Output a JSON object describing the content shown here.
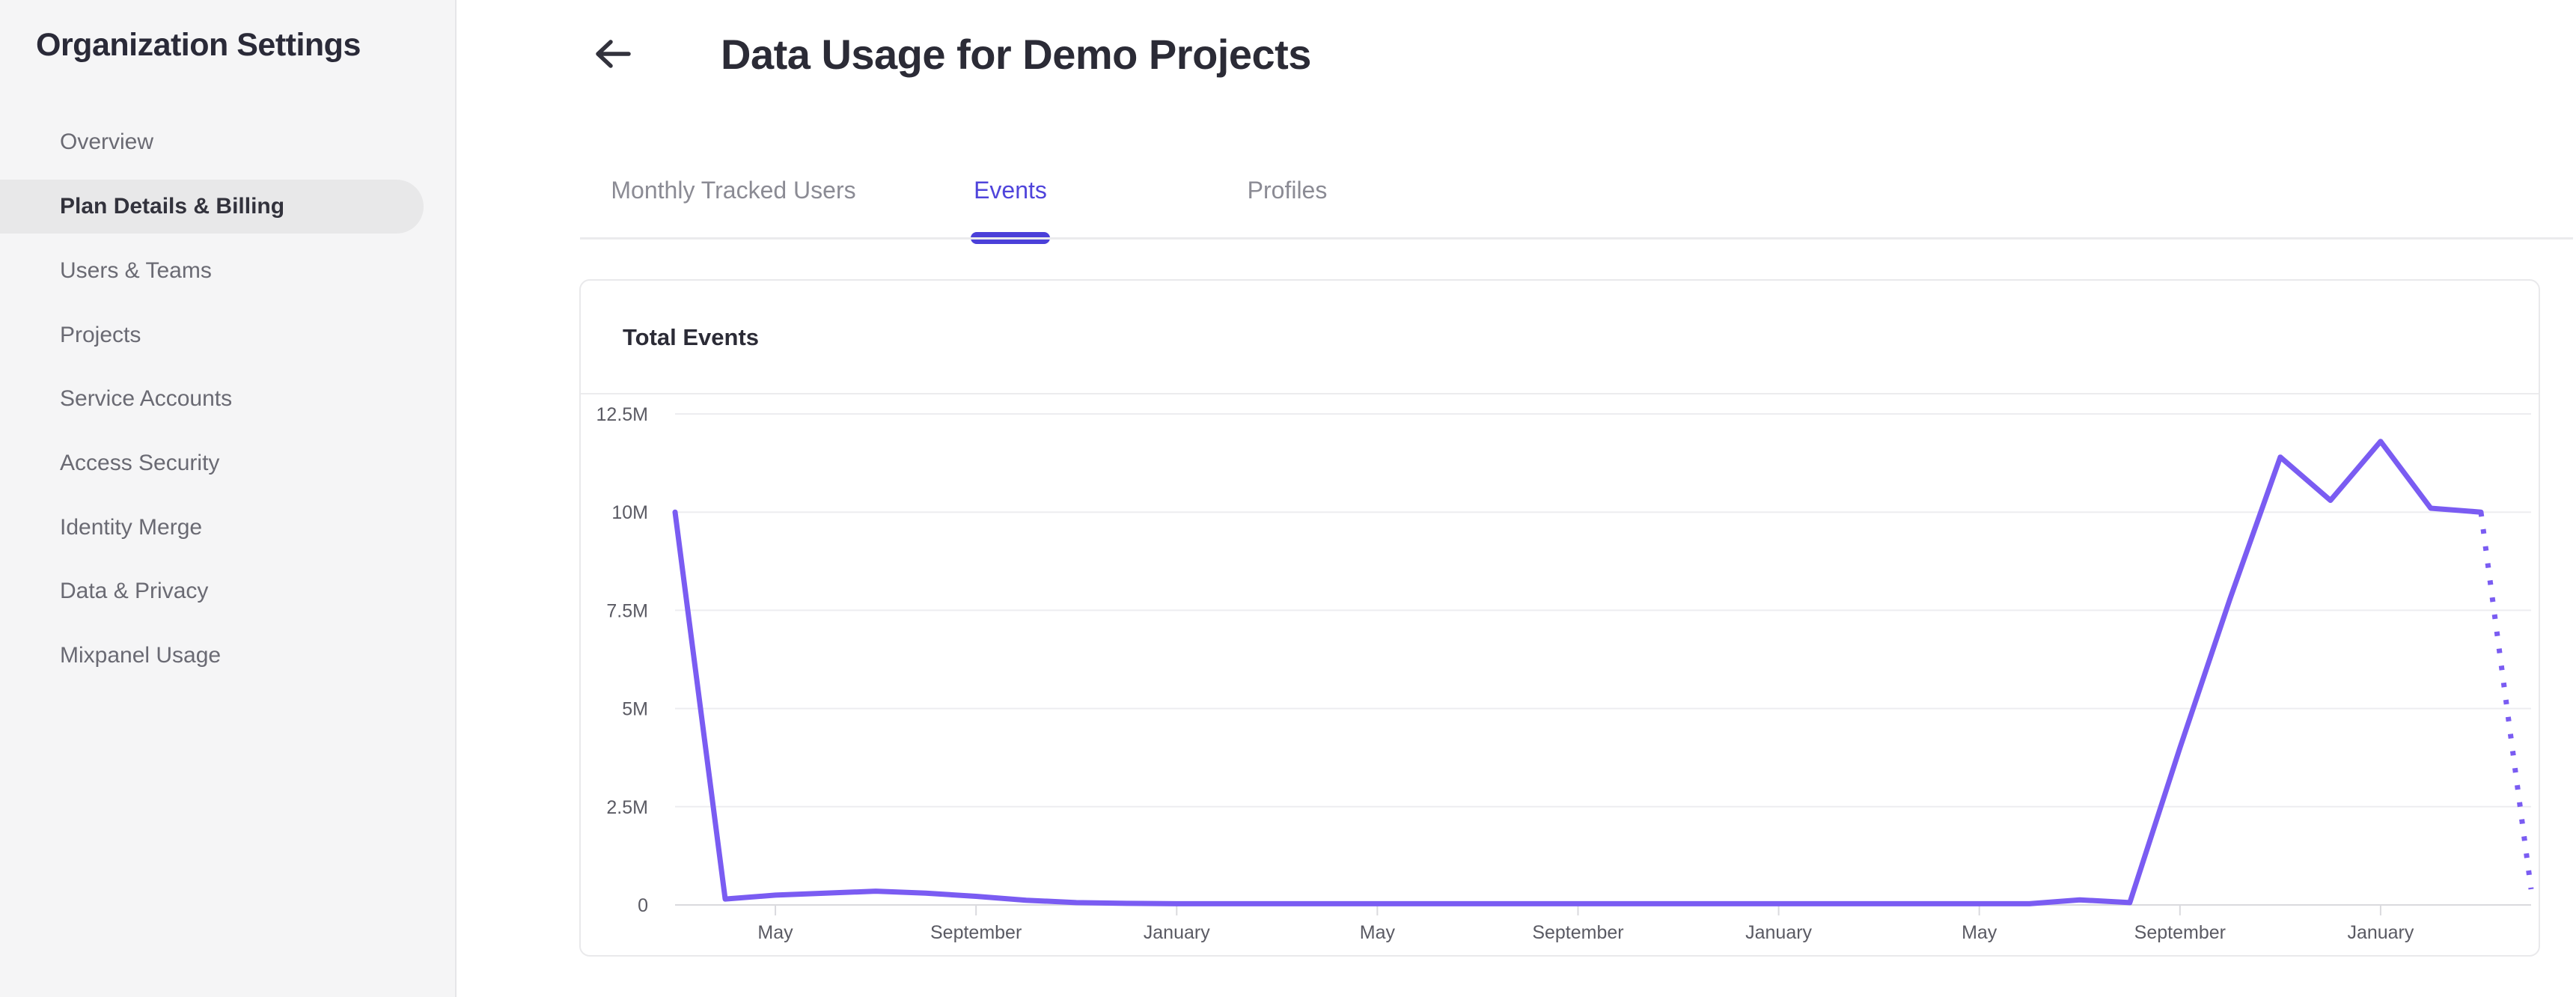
{
  "sidebar": {
    "title": "Organization Settings",
    "items": [
      {
        "label": "Overview",
        "selected": false
      },
      {
        "label": "Plan Details & Billing",
        "selected": true
      },
      {
        "label": "Users & Teams",
        "selected": false
      },
      {
        "label": "Projects",
        "selected": false
      },
      {
        "label": "Service Accounts",
        "selected": false
      },
      {
        "label": "Access Security",
        "selected": false
      },
      {
        "label": "Identity Merge",
        "selected": false
      },
      {
        "label": "Data & Privacy",
        "selected": false
      },
      {
        "label": "Mixpanel Usage",
        "selected": false
      }
    ]
  },
  "header": {
    "title": "Data Usage for Demo Projects",
    "back_icon": "left-arrow"
  },
  "tabs": [
    {
      "label": "Monthly Tracked Users",
      "active": false
    },
    {
      "label": "Events",
      "active": true
    },
    {
      "label": "Profiles",
      "active": false
    }
  ],
  "colors": {
    "accent": "#4f44db",
    "tab_underline": "#4b40d9",
    "chart_line": "#7a5cf2",
    "grid_line": "#ededf0",
    "axis_line": "#dadade",
    "axis_text": "#5a5a63",
    "sidebar_bg": "#f5f5f6",
    "selected_pill": "#e8e8e9"
  },
  "chart_data": {
    "type": "line",
    "title": "Total Events",
    "xlabel": "",
    "ylabel": "",
    "x_unit": "month",
    "x_point_count": 38,
    "x_start_month": "March",
    "x_tick_labels": [
      "May",
      "September",
      "January",
      "May",
      "September",
      "January",
      "May",
      "September",
      "January"
    ],
    "x_tick_indices": [
      2,
      6,
      10,
      14,
      18,
      22,
      26,
      30,
      34
    ],
    "y_tick_labels": [
      "0",
      "2.5M",
      "5M",
      "7.5M",
      "10M",
      "12.5M"
    ],
    "ylim_millions": [
      0,
      12.5
    ],
    "grid": "horizontal",
    "legend": "none",
    "series": [
      {
        "name": "Total Events",
        "values_millions": [
          10,
          0.15,
          0.25,
          0.3,
          0.35,
          0.3,
          0.22,
          0.12,
          0.06,
          0.04,
          0.03,
          0.03,
          0.03,
          0.03,
          0.03,
          0.03,
          0.03,
          0.03,
          0.03,
          0.03,
          0.03,
          0.03,
          0.03,
          0.03,
          0.03,
          0.03,
          0.03,
          0.03,
          0.13,
          0.06,
          4.0,
          7.8,
          11.4,
          10.3,
          11.8,
          10.1,
          10.0,
          0.4
        ],
        "last_point_projected_dotted": true
      }
    ]
  }
}
